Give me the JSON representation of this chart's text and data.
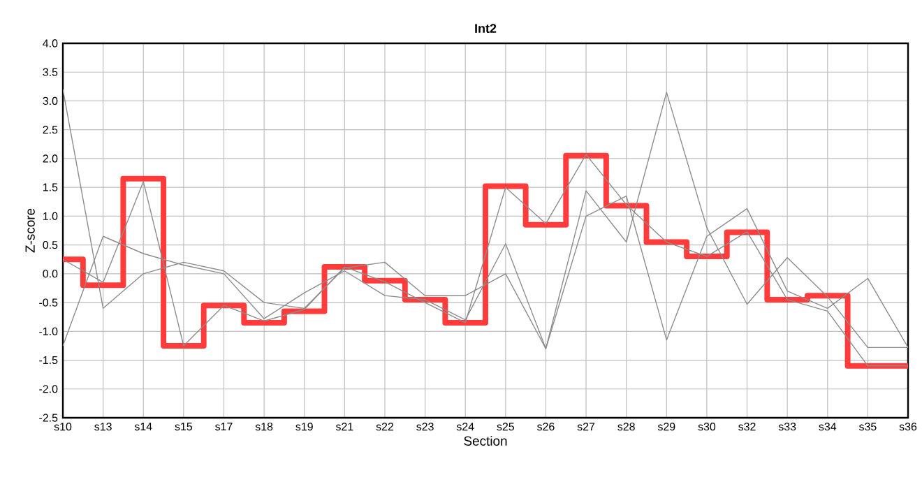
{
  "chart_data": {
    "type": "line",
    "title": "Int2",
    "xlabel": "Section",
    "ylabel": "Z-score",
    "categories": [
      "s10",
      "s13",
      "s14",
      "s15",
      "s17",
      "s18",
      "s19",
      "s21",
      "s22",
      "s23",
      "s24",
      "s25",
      "s26",
      "s27",
      "s28",
      "s29",
      "s30",
      "s32",
      "s33",
      "s34",
      "s35",
      "s36"
    ],
    "series": [
      {
        "type": "step",
        "color": "#ff3b3b",
        "values": [
          0.25,
          -0.2,
          1.65,
          -1.25,
          -0.55,
          -0.85,
          -0.65,
          0.12,
          -0.12,
          -0.45,
          -0.85,
          1.52,
          0.85,
          2.05,
          1.18,
          0.55,
          0.3,
          0.72,
          -0.45,
          -0.38,
          -1.6,
          -1.6
        ]
      },
      {
        "color": "#8c8c8c",
        "values": [
          3.2,
          -0.6,
          0.0,
          0.2,
          0.05,
          -0.5,
          -0.6,
          0.1,
          0.2,
          -0.38,
          -0.38,
          0.0,
          -1.3,
          1.0,
          1.35,
          -1.15,
          0.65,
          1.13,
          -0.3,
          -0.6,
          -0.08,
          -1.28
        ]
      },
      {
        "color": "#8c8c8c",
        "values": [
          -1.25,
          0.65,
          0.35,
          0.15,
          0.0,
          -0.78,
          -0.33,
          0.05,
          -0.38,
          -0.45,
          -0.8,
          0.52,
          -1.3,
          1.44,
          0.55,
          3.15,
          0.8,
          -0.53,
          0.28,
          -0.4,
          -1.28,
          -1.28
        ]
      },
      {
        "color": "#8c8c8c",
        "values": [
          0.25,
          -0.15,
          1.6,
          -1.25,
          -0.55,
          -0.82,
          -0.62,
          0.12,
          -0.14,
          -0.5,
          -0.85,
          1.5,
          0.87,
          2.07,
          1.2,
          0.55,
          0.3,
          0.73,
          -0.45,
          -0.65,
          -1.6,
          -1.6
        ]
      }
    ],
    "ylim": [
      -2.5,
      4.0
    ],
    "yticks": [
      {
        "value": -2.5,
        "label": "-2.5"
      },
      {
        "value": -2.0,
        "label": "-2.0"
      },
      {
        "value": -1.5,
        "label": "-1.5"
      },
      {
        "value": -1.0,
        "label": "-1.0"
      },
      {
        "value": -0.5,
        "label": "-0.5"
      },
      {
        "value": 0.0,
        "label": "0.0"
      },
      {
        "value": 0.5,
        "label": "0.5"
      },
      {
        "value": 1.0,
        "label": "1.0"
      },
      {
        "value": 1.5,
        "label": "1.5"
      },
      {
        "value": 2.0,
        "label": "2.0"
      },
      {
        "value": 2.5,
        "label": "2.5"
      },
      {
        "value": 3.0,
        "label": "3.0"
      },
      {
        "value": 3.5,
        "label": "3.5"
      },
      {
        "value": 4.0,
        "label": "4.0"
      }
    ],
    "grid": true,
    "marker": "none",
    "line_style": "solid"
  }
}
